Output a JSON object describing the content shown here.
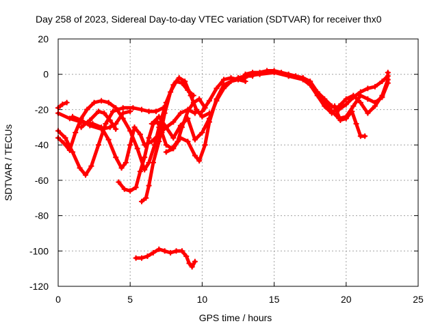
{
  "chart_data": {
    "type": "scatter",
    "title": "Day 258 of 2023, Sidereal Day-to-day VTEC variation (SDTVAR) for receiver thx0",
    "xlabel": "GPS time / hours",
    "ylabel": "SDTVAR / TECUs",
    "xlim": [
      0,
      25
    ],
    "ylim": [
      -120,
      20
    ],
    "xticks": [
      0,
      5,
      10,
      15,
      20,
      25
    ],
    "yticks": [
      20,
      0,
      -20,
      -40,
      -60,
      -80,
      -100,
      -120
    ],
    "grid": true,
    "marker": "plus",
    "color": "#ff0000",
    "series": [
      {
        "name": "trace-a",
        "points": [
          [
            0.0,
            -19
          ],
          [
            0.3,
            -17
          ],
          [
            0.6,
            -16
          ]
        ]
      },
      {
        "name": "trace-b",
        "points": [
          [
            0.0,
            -32
          ],
          [
            0.5,
            -36
          ],
          [
            1.0,
            -44
          ],
          [
            1.5,
            -53
          ],
          [
            1.9,
            -57
          ],
          [
            2.3,
            -52
          ],
          [
            2.8,
            -40
          ],
          [
            3.3,
            -28
          ],
          [
            3.8,
            -21
          ],
          [
            4.5,
            -19
          ],
          [
            5.2,
            -19
          ],
          [
            5.8,
            -20
          ],
          [
            6.3,
            -21
          ],
          [
            6.8,
            -21
          ],
          [
            7.3,
            -19
          ]
        ]
      },
      {
        "name": "trace-c",
        "points": [
          [
            0.0,
            -36
          ],
          [
            0.4,
            -39
          ],
          [
            0.8,
            -43
          ],
          [
            1.2,
            -33
          ],
          [
            1.6,
            -25
          ],
          [
            2.0,
            -20
          ],
          [
            2.5,
            -16
          ],
          [
            3.0,
            -15
          ],
          [
            3.5,
            -16
          ],
          [
            4.0,
            -19
          ],
          [
            4.5,
            -25
          ],
          [
            5.0,
            -32
          ],
          [
            5.5,
            -42
          ],
          [
            6.0,
            -54
          ],
          [
            6.3,
            -50
          ],
          [
            6.7,
            -40
          ],
          [
            7.0,
            -30
          ],
          [
            7.5,
            -16
          ],
          [
            8.0,
            -6
          ],
          [
            8.4,
            -2
          ],
          [
            8.8,
            -4
          ],
          [
            9.2,
            -12
          ],
          [
            9.6,
            -20
          ],
          [
            10.0,
            -24
          ],
          [
            10.5,
            -22
          ]
        ]
      },
      {
        "name": "trace-d",
        "points": [
          [
            0.0,
            -22
          ],
          [
            0.8,
            -25
          ],
          [
            1.6,
            -27
          ],
          [
            2.4,
            -28
          ],
          [
            3.0,
            -30
          ],
          [
            3.5,
            -37
          ],
          [
            4.0,
            -47
          ],
          [
            4.4,
            -53
          ],
          [
            4.7,
            -50
          ],
          [
            5.0,
            -40
          ],
          [
            5.3,
            -30
          ],
          [
            5.7,
            -34
          ],
          [
            6.0,
            -40
          ],
          [
            6.5,
            -38
          ],
          [
            7.0,
            -34
          ],
          [
            7.5,
            -30
          ],
          [
            8.0,
            -27
          ],
          [
            8.5,
            -22
          ],
          [
            9.0,
            -20
          ],
          [
            9.5,
            -22
          ]
        ]
      },
      {
        "name": "trace-e",
        "points": [
          [
            4.2,
            -61
          ],
          [
            4.6,
            -65
          ],
          [
            5.0,
            -66
          ],
          [
            5.4,
            -64
          ],
          [
            5.7,
            -55
          ],
          [
            6.0,
            -47
          ],
          [
            6.3,
            -36
          ],
          [
            6.6,
            -28
          ],
          [
            6.9,
            -27
          ],
          [
            7.2,
            -33
          ],
          [
            7.5,
            -40
          ],
          [
            7.9,
            -42
          ],
          [
            8.3,
            -38
          ],
          [
            8.6,
            -30
          ],
          [
            9.0,
            -21
          ],
          [
            9.4,
            -16
          ],
          [
            9.8,
            -14
          ],
          [
            10.2,
            -19
          ]
        ]
      },
      {
        "name": "trace-f",
        "points": [
          [
            5.8,
            -72
          ],
          [
            6.1,
            -70
          ],
          [
            6.3,
            -63
          ],
          [
            6.6,
            -50
          ],
          [
            7.0,
            -38
          ],
          [
            7.4,
            -22
          ],
          [
            7.8,
            -10
          ],
          [
            8.2,
            -4
          ],
          [
            8.6,
            -5
          ],
          [
            9.0,
            -9
          ],
          [
            9.4,
            -12
          ]
        ]
      },
      {
        "name": "trace-g",
        "points": [
          [
            1.0,
            -24
          ],
          [
            1.6,
            -26
          ],
          [
            2.2,
            -29
          ],
          [
            3.0,
            -31
          ],
          [
            3.6,
            -30
          ],
          [
            4.0,
            -28
          ],
          [
            4.5,
            -22
          ],
          [
            5.0,
            -21
          ]
        ]
      },
      {
        "name": "trace-h",
        "points": [
          [
            1.6,
            -30
          ],
          [
            2.2,
            -26
          ],
          [
            2.8,
            -21
          ],
          [
            3.2,
            -22
          ],
          [
            3.6,
            -26
          ],
          [
            4.0,
            -31
          ]
        ]
      },
      {
        "name": "trace-i",
        "points": [
          [
            6.5,
            -28
          ],
          [
            7.0,
            -24
          ],
          [
            7.5,
            -30
          ],
          [
            8.0,
            -36
          ],
          [
            8.5,
            -29
          ],
          [
            9.0,
            -25
          ],
          [
            9.5,
            -37
          ],
          [
            10.0,
            -33
          ],
          [
            10.5,
            -25
          ],
          [
            11.0,
            -15
          ],
          [
            11.5,
            -8
          ],
          [
            12.0,
            -4
          ],
          [
            12.5,
            -2
          ],
          [
            13.0,
            -1
          ],
          [
            13.5,
            -1
          ]
        ]
      },
      {
        "name": "trace-j",
        "points": [
          [
            7.5,
            -44
          ],
          [
            8.0,
            -42
          ],
          [
            8.5,
            -36
          ],
          [
            9.0,
            -38
          ],
          [
            9.5,
            -46
          ],
          [
            9.8,
            -49
          ],
          [
            10.2,
            -40
          ],
          [
            10.5,
            -27
          ],
          [
            11.0,
            -14
          ],
          [
            11.5,
            -6
          ],
          [
            12.0,
            -4
          ],
          [
            12.5,
            -3
          ],
          [
            13.0,
            -2
          ]
        ]
      },
      {
        "name": "trace-k",
        "points": [
          [
            10.0,
            -21
          ],
          [
            10.5,
            -15
          ],
          [
            11.0,
            -8
          ],
          [
            11.5,
            -3
          ],
          [
            12.0,
            -2
          ],
          [
            12.5,
            -3
          ],
          [
            13.0,
            -4
          ]
        ]
      },
      {
        "name": "trace-l",
        "points": [
          [
            13.0,
            0
          ],
          [
            13.5,
            1
          ],
          [
            14.0,
            1
          ],
          [
            14.5,
            2
          ],
          [
            15.0,
            2
          ],
          [
            15.5,
            1
          ],
          [
            16.0,
            0
          ],
          [
            16.5,
            -1
          ],
          [
            17.0,
            -2
          ],
          [
            17.5,
            -4
          ],
          [
            18.0,
            -10
          ],
          [
            18.5,
            -16
          ],
          [
            19.0,
            -21
          ],
          [
            19.5,
            -25
          ],
          [
            20.0,
            -24
          ],
          [
            20.5,
            -18
          ],
          [
            21.0,
            -12
          ],
          [
            21.5,
            -14
          ],
          [
            22.0,
            -16
          ],
          [
            22.5,
            -13
          ],
          [
            22.9,
            -5
          ],
          [
            22.9,
            1
          ]
        ]
      },
      {
        "name": "trace-m",
        "points": [
          [
            13.0,
            -1
          ],
          [
            14.0,
            0
          ],
          [
            15.0,
            1
          ],
          [
            16.0,
            -1
          ],
          [
            17.0,
            -3
          ],
          [
            17.5,
            -6
          ],
          [
            18.0,
            -12
          ],
          [
            18.5,
            -18
          ],
          [
            19.0,
            -22
          ],
          [
            19.5,
            -18
          ],
          [
            20.0,
            -14
          ],
          [
            20.5,
            -12
          ],
          [
            21.0,
            -16
          ],
          [
            21.5,
            -22
          ],
          [
            22.0,
            -18
          ],
          [
            22.5,
            -12
          ],
          [
            22.9,
            -3
          ]
        ]
      },
      {
        "name": "trace-n",
        "points": [
          [
            16.0,
            -1
          ],
          [
            17.0,
            -2
          ],
          [
            17.5,
            -5
          ],
          [
            18.0,
            -10
          ],
          [
            18.5,
            -14
          ],
          [
            19.0,
            -18
          ],
          [
            19.5,
            -20
          ],
          [
            20.0,
            -17
          ],
          [
            20.5,
            -13
          ],
          [
            21.0,
            -10
          ],
          [
            21.5,
            -8
          ],
          [
            22.0,
            -7
          ],
          [
            22.5,
            -4
          ],
          [
            22.9,
            -1
          ]
        ]
      },
      {
        "name": "trace-o",
        "points": [
          [
            19.2,
            -18
          ],
          [
            19.6,
            -26
          ],
          [
            20.0,
            -25
          ],
          [
            20.4,
            -21
          ],
          [
            20.7,
            -28
          ],
          [
            21.0,
            -35
          ],
          [
            21.3,
            -35
          ]
        ]
      },
      {
        "name": "trace-p",
        "points": [
          [
            5.4,
            -104
          ],
          [
            5.8,
            -104
          ],
          [
            6.2,
            -103
          ],
          [
            6.6,
            -101
          ],
          [
            7.0,
            -99
          ],
          [
            7.4,
            -100
          ],
          [
            7.8,
            -101
          ],
          [
            8.2,
            -100
          ],
          [
            8.6,
            -100
          ],
          [
            8.9,
            -103
          ],
          [
            9.1,
            -107
          ],
          [
            9.3,
            -109
          ],
          [
            9.5,
            -106
          ]
        ]
      }
    ]
  }
}
